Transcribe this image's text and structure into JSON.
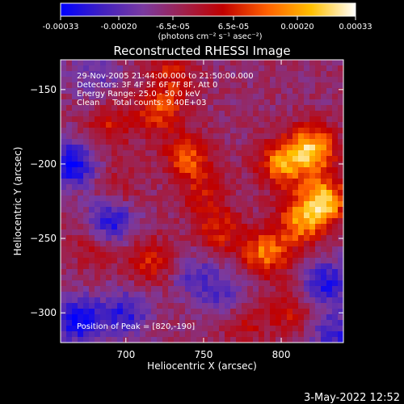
{
  "chart_data": {
    "type": "heatmap",
    "title": "Reconstructed RHESSI Image",
    "xlabel": "Heliocentric X (arcsec)",
    "ylabel": "Heliocentric Y (arcsec)",
    "xlim": [
      658,
      840
    ],
    "ylim": [
      -320,
      -130
    ],
    "x_ticks": [
      700,
      750,
      800
    ],
    "y_ticks": [
      -150,
      -200,
      -250,
      -300
    ],
    "colorbar": {
      "ticks": [
        "-0.00033",
        "-0.00020",
        "-6.5e-05",
        "6.5e-05",
        "0.00020",
        "0.00033"
      ],
      "units": "(photons cm⁻² s⁻¹ asec⁻²)",
      "range": [
        -0.00033,
        0.00033
      ],
      "colormap": [
        "#0000ff",
        "#4020c0",
        "#7a3aa0",
        "#a0204a",
        "#c00000",
        "#ff6000",
        "#ffc000",
        "#ffffff"
      ]
    },
    "annotations": [
      "29-Nov-2005 21:44:00.000 to 21:50:00.000",
      "Detectors: 3F 4F 5F 6F 7F 8F, Att 0",
      "Energy Range: 25.0 - 50.0 keV",
      "Clean     Total counts: 9.40E+03"
    ],
    "peak_label": "Position of Peak = [820,-190]",
    "peak": [
      820,
      -190
    ],
    "hotspots": [
      {
        "x": 827,
        "y": -225,
        "intensity": 0.00033
      },
      {
        "x": 820,
        "y": -190,
        "intensity": 0.00031
      },
      {
        "x": 800,
        "y": -200,
        "intensity": 0.00025
      },
      {
        "x": 790,
        "y": -260,
        "intensity": 0.00024
      },
      {
        "x": 812,
        "y": -240,
        "intensity": 0.00022
      },
      {
        "x": 740,
        "y": -195,
        "intensity": 0.0002
      },
      {
        "x": 722,
        "y": -165,
        "intensity": 0.00018
      },
      {
        "x": 715,
        "y": -265,
        "intensity": 0.00016
      },
      {
        "x": 760,
        "y": -245,
        "intensity": 0.00015
      },
      {
        "x": 690,
        "y": -175,
        "intensity": 0.00013
      },
      {
        "x": 730,
        "y": -140,
        "intensity": 0.00014
      },
      {
        "x": 775,
        "y": -305,
        "intensity": 0.00012
      },
      {
        "x": 680,
        "y": -255,
        "intensity": 0.00011
      },
      {
        "x": 805,
        "y": -300,
        "intensity": 0.00012
      },
      {
        "x": 750,
        "y": -220,
        "intensity": 0.00012
      },
      {
        "x": 695,
        "y": -215,
        "intensity": 8e-05
      }
    ],
    "coldspots": [
      {
        "x": 665,
        "y": -200,
        "intensity": -0.00025
      },
      {
        "x": 690,
        "y": -240,
        "intensity": -0.00022
      },
      {
        "x": 670,
        "y": -305,
        "intensity": -0.00024
      },
      {
        "x": 700,
        "y": -300,
        "intensity": -0.00018
      },
      {
        "x": 830,
        "y": -280,
        "intensity": -0.0002
      },
      {
        "x": 835,
        "y": -315,
        "intensity": -0.00017
      },
      {
        "x": 765,
        "y": -290,
        "intensity": -0.00014
      },
      {
        "x": 680,
        "y": -140,
        "intensity": -0.0001
      },
      {
        "x": 745,
        "y": -275,
        "intensity": -0.00012
      }
    ]
  },
  "timestamp": "3-May-2022 12:52"
}
